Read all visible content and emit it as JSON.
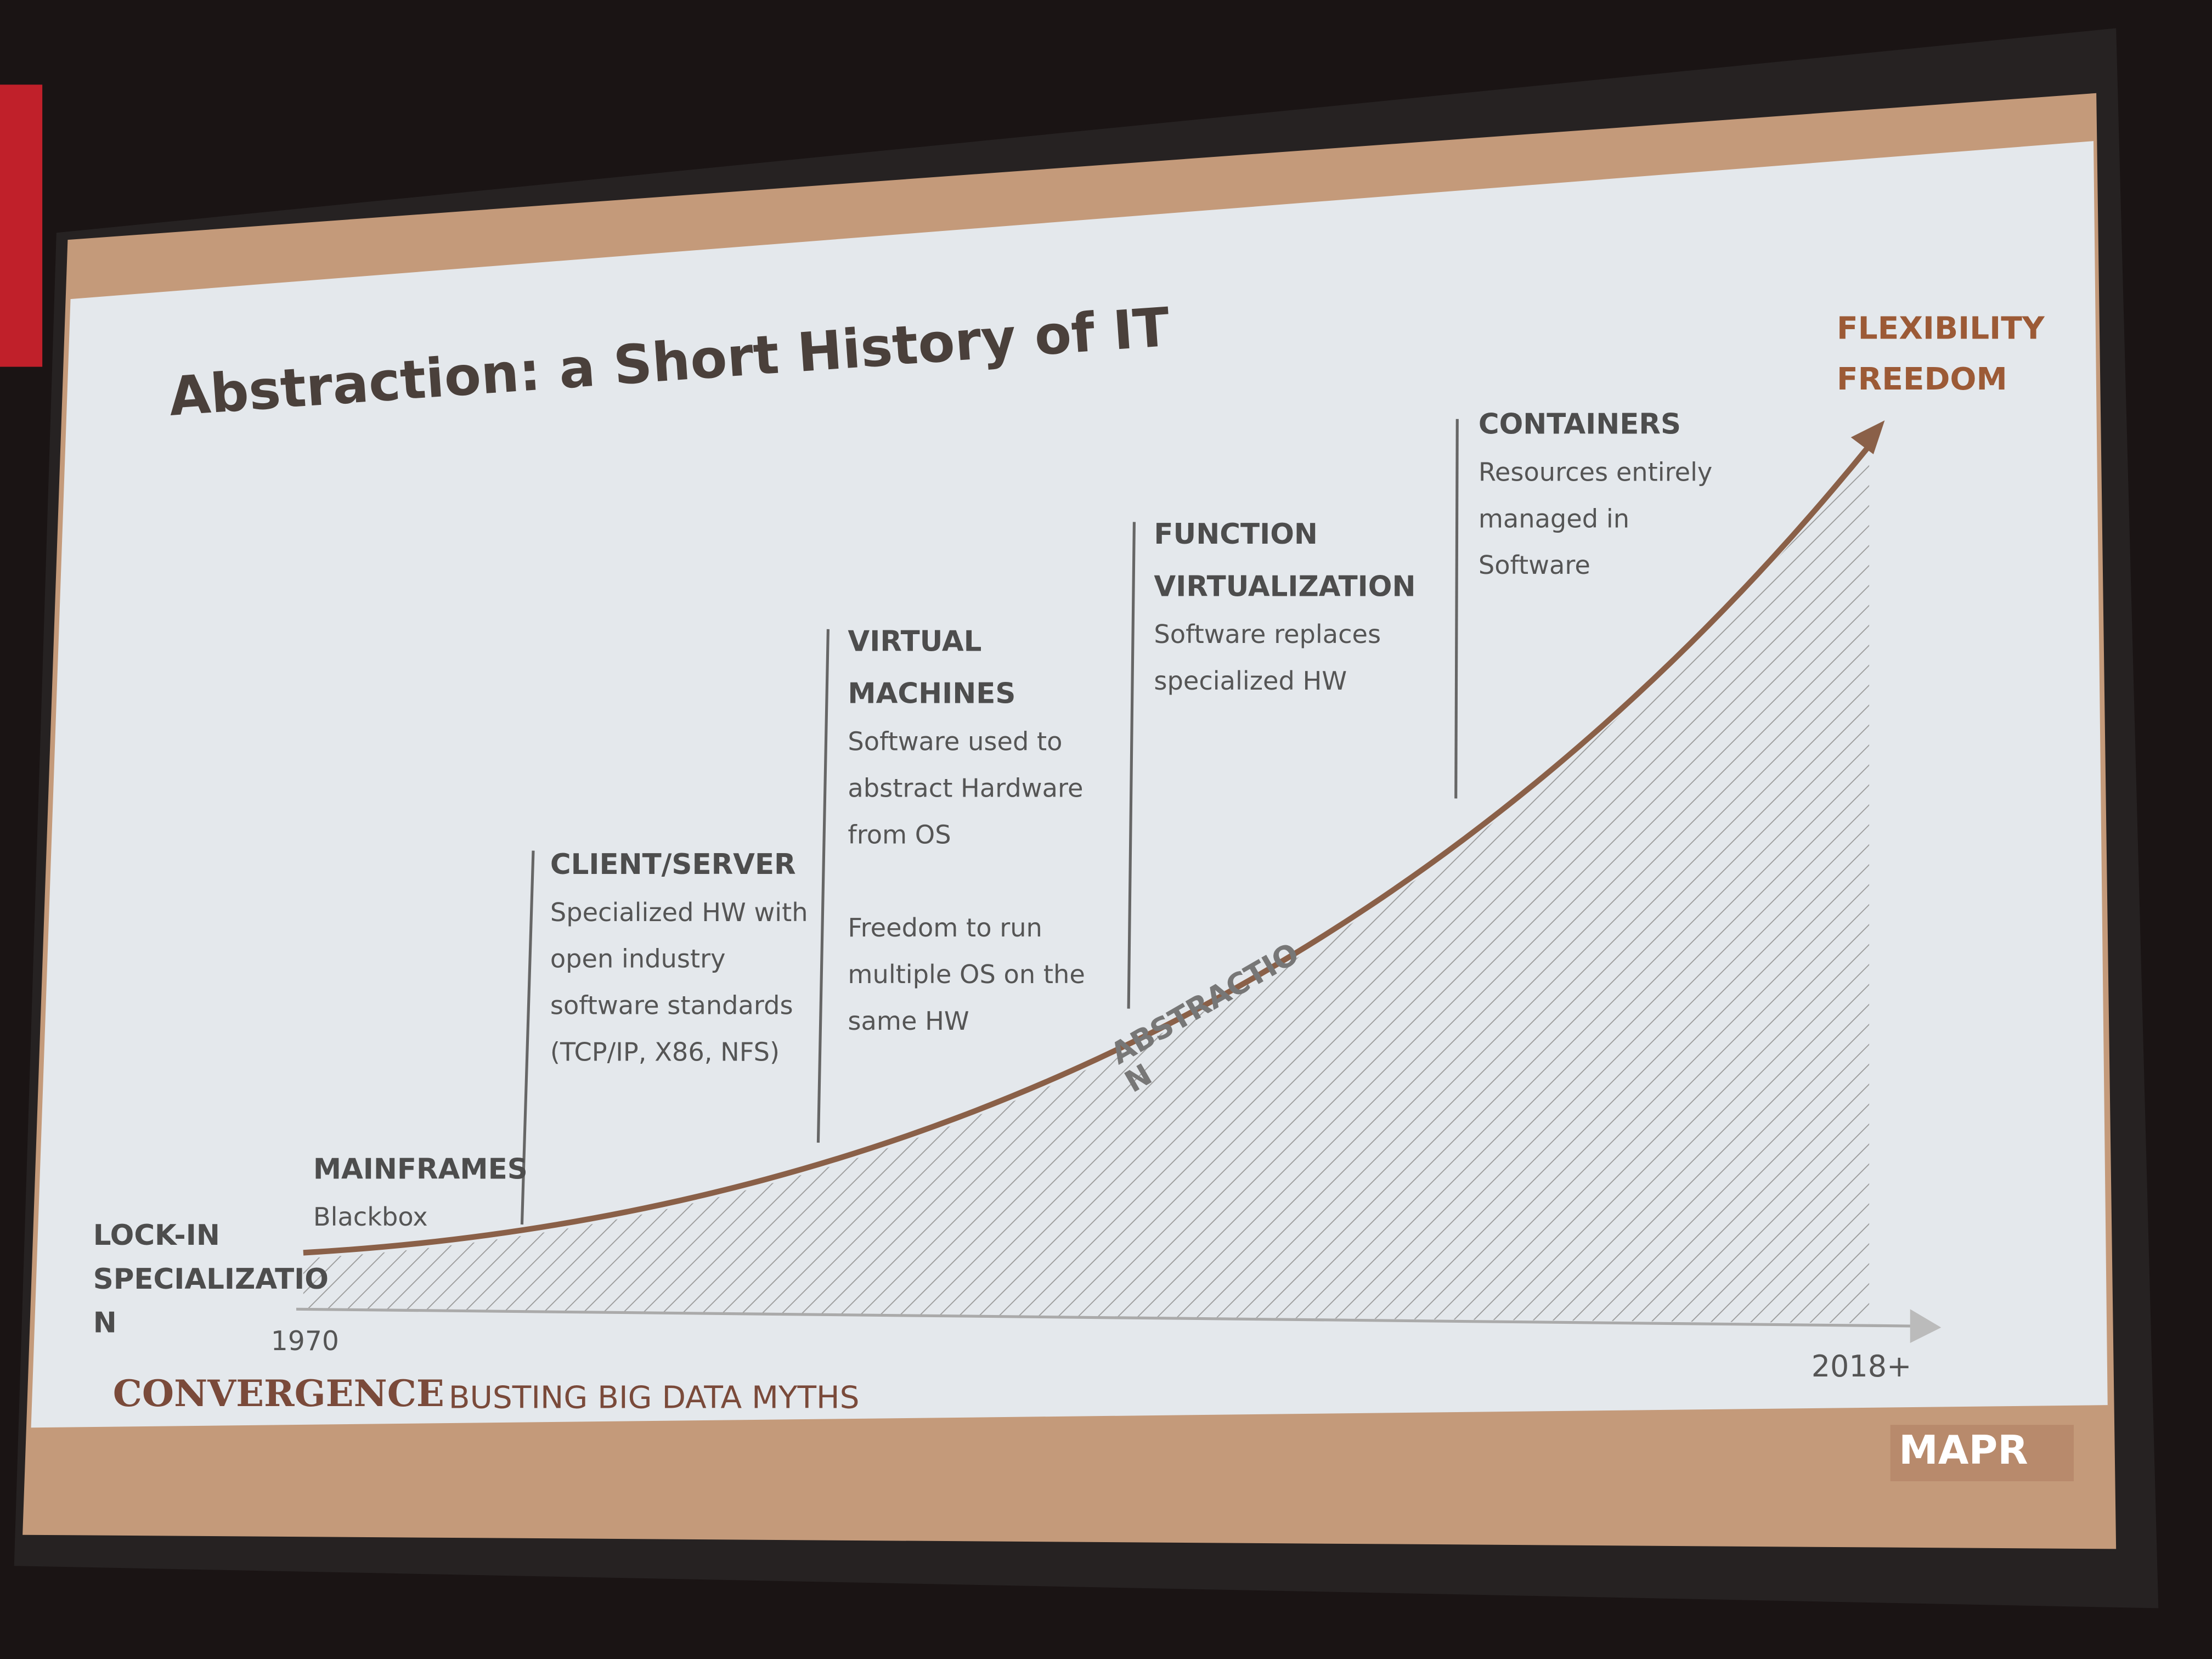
{
  "title": "Abstraction: a Short History of IT",
  "start": {
    "lines": [
      "LOCK-IN",
      "SPECIALIZATIO",
      "N"
    ]
  },
  "end": {
    "lines": [
      "FLEXIBILITY",
      "FREEDOM"
    ]
  },
  "axis": {
    "start": "1970",
    "end": "2018+"
  },
  "curve_label": {
    "lines": [
      "ABSTRACTIO",
      "N"
    ]
  },
  "stages": [
    {
      "heading": [
        "MAINFRAMES"
      ],
      "paragraphs": [
        [
          "Blackbox"
        ]
      ]
    },
    {
      "heading": [
        "CLIENT/SERVER"
      ],
      "paragraphs": [
        [
          "Specialized HW with",
          "open industry",
          "software standards",
          "(TCP/IP, X86, NFS)"
        ]
      ]
    },
    {
      "heading": [
        "VIRTUAL",
        "MACHINES"
      ],
      "paragraphs": [
        [
          "Software used to",
          "abstract Hardware",
          "from OS"
        ],
        [
          "Freedom to run",
          "multiple OS on the",
          "same HW"
        ]
      ]
    },
    {
      "heading": [
        "FUNCTION",
        "VIRTUALIZATION"
      ],
      "paragraphs": [
        [
          "Software replaces",
          "specialized HW"
        ]
      ]
    },
    {
      "heading": [
        "CONTAINERS"
      ],
      "paragraphs": [
        [
          "Resources entirely",
          "managed in",
          "Software"
        ]
      ]
    }
  ],
  "footer": {
    "event": "CONVERGENCE",
    "tagline": "BUSTING BIG DATA MYTHS",
    "logo": "MAPR"
  }
}
